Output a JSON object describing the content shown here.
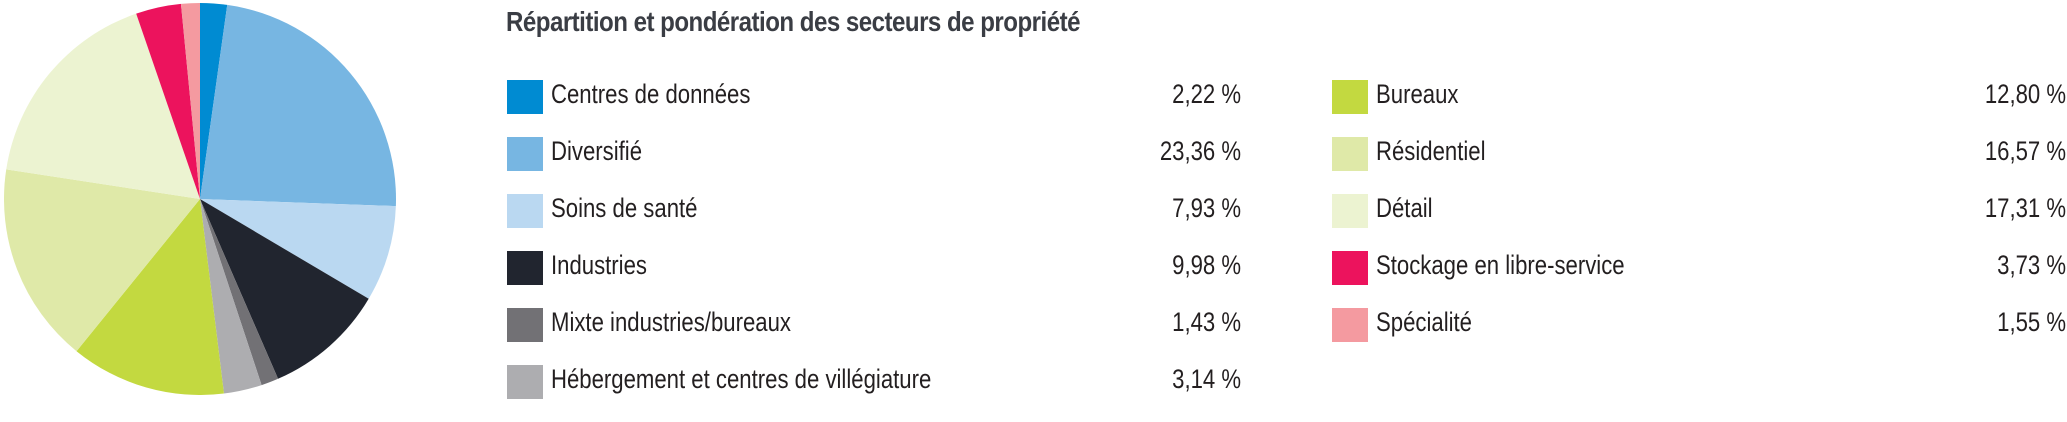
{
  "title": "Répartition et pondération des secteurs de propriété",
  "legend": {
    "left": [
      {
        "label": "Centres de données",
        "value": "2,22 %",
        "color": "#008bd2"
      },
      {
        "label": "Diversifié",
        "value": "23,36 %",
        "color": "#77b6e2"
      },
      {
        "label": "Soins de santé",
        "value": "7,93 %",
        "color": "#bad8f1"
      },
      {
        "label": "Industries",
        "value": "9,98 %",
        "color": "#21252f"
      },
      {
        "label": "Mixte industries/bureaux",
        "value": "1,43 %",
        "color": "#727175"
      },
      {
        "label": "Hébergement et centres de villégiature",
        "value": "3,14 %",
        "color": "#adadb0"
      }
    ],
    "right": [
      {
        "label": "Bureaux",
        "value": "12,80 %",
        "color": "#c3d940"
      },
      {
        "label": "Résidentiel",
        "value": "16,57 %",
        "color": "#dfe9a8"
      },
      {
        "label": "Détail",
        "value": "17,31 %",
        "color": "#ecf3d1"
      },
      {
        "label": "Stockage en libre-service",
        "value": "3,73 %",
        "color": "#ec135d"
      },
      {
        "label": "Spécialité",
        "value": "1,55 %",
        "color": "#f49aa0"
      }
    ]
  },
  "chart_data": {
    "type": "pie",
    "title": "Répartition et pondération des secteurs de propriété",
    "start_angle": "top (12 o'clock)",
    "direction": "clockwise",
    "unit": "%",
    "categories": [
      "Centres de données",
      "Diversifié",
      "Soins de santé",
      "Industries",
      "Mixte industries/bureaux",
      "Hébergement et centres de villégiature",
      "Bureaux",
      "Résidentiel",
      "Détail",
      "Stockage en libre-service",
      "Spécialité"
    ],
    "values": [
      2.22,
      23.36,
      7.93,
      9.98,
      1.43,
      3.14,
      12.8,
      16.57,
      17.31,
      3.73,
      1.55
    ],
    "colors": [
      "#008bd2",
      "#77b6e2",
      "#bad8f1",
      "#21252f",
      "#727175",
      "#adadb0",
      "#c3d940",
      "#dfe9a8",
      "#ecf3d1",
      "#ec135d",
      "#f49aa0"
    ],
    "legend_position": "right"
  }
}
